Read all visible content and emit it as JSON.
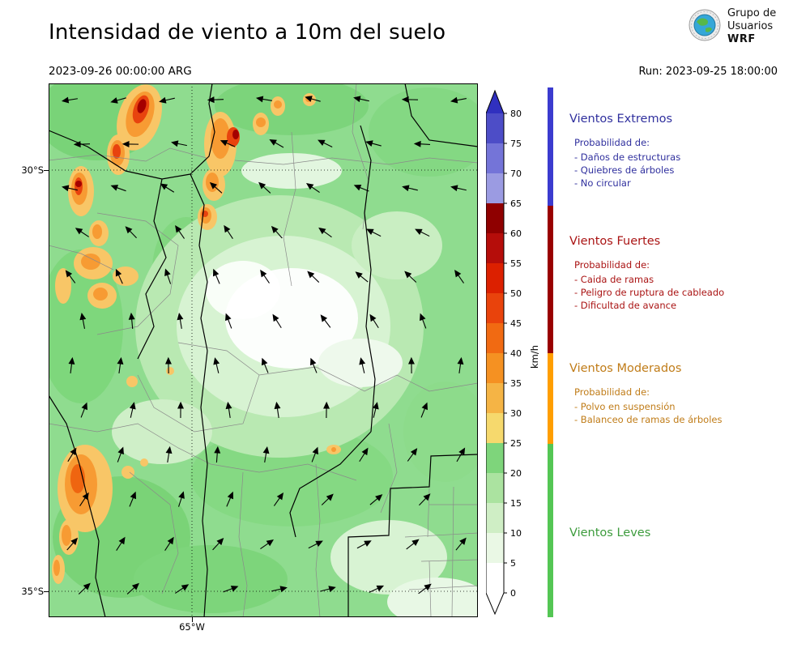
{
  "header": {
    "title": "Intensidad de viento a 10m del suelo",
    "valid_time": "2023-09-26 00:00:00 ARG",
    "run_label": "Run: 2023-09-25 18:00:00",
    "logo": {
      "line1": "Grupo de",
      "line2": "Usuarios",
      "line3": "WRF"
    }
  },
  "map": {
    "lat_labels": [
      "30°S",
      "35°S"
    ],
    "lon_labels": [
      "65°W"
    ]
  },
  "colorbar": {
    "unit": "km/h",
    "ticks_desc": [
      "80",
      "75",
      "70",
      "65",
      "60",
      "55",
      "50",
      "45",
      "40",
      "35",
      "30",
      "25",
      "20",
      "15",
      "10",
      "5",
      "0"
    ],
    "segment_colors": [
      "#ffffff",
      "#eaf8e5",
      "#cfeec5",
      "#abe3a0",
      "#7ed57b",
      "#f6d96d",
      "#f5b445",
      "#f59122",
      "#f16a12",
      "#e9430c",
      "#dc2000",
      "#b50d0a",
      "#8f0000",
      "#9b9be2",
      "#7474d8",
      "#4d4dc7"
    ],
    "over_color": "#3030bf",
    "under_color": "#ffffff"
  },
  "legend": {
    "sections": [
      {
        "title": "Vientos Extremos",
        "bar_color": "#3b3bcf",
        "text_color": "#30309e",
        "intro": "Probabilidad de:",
        "items": [
          "- Daños de estructuras",
          "- Quiebres de árboles",
          "- No circular"
        ]
      },
      {
        "title": "Vientos Fuertes",
        "bar_color": "#990000",
        "text_color": "#aa1414",
        "intro": "Probabilidad de:",
        "items": [
          "- Caida de ramas",
          "- Peligro de ruptura de cableado",
          "- Dificultad de avance"
        ]
      },
      {
        "title": "Vientos Moderados",
        "bar_color": "#ff9e00",
        "text_color": "#c07c18",
        "intro": "Probabilidad de:",
        "items": [
          "- Polvo en suspensión",
          "- Balanceo de ramas de árboles"
        ]
      },
      {
        "title": "Vientos Leves",
        "bar_color": "#54c654",
        "text_color": "#3d9c3d",
        "intro": "",
        "items": []
      }
    ]
  }
}
